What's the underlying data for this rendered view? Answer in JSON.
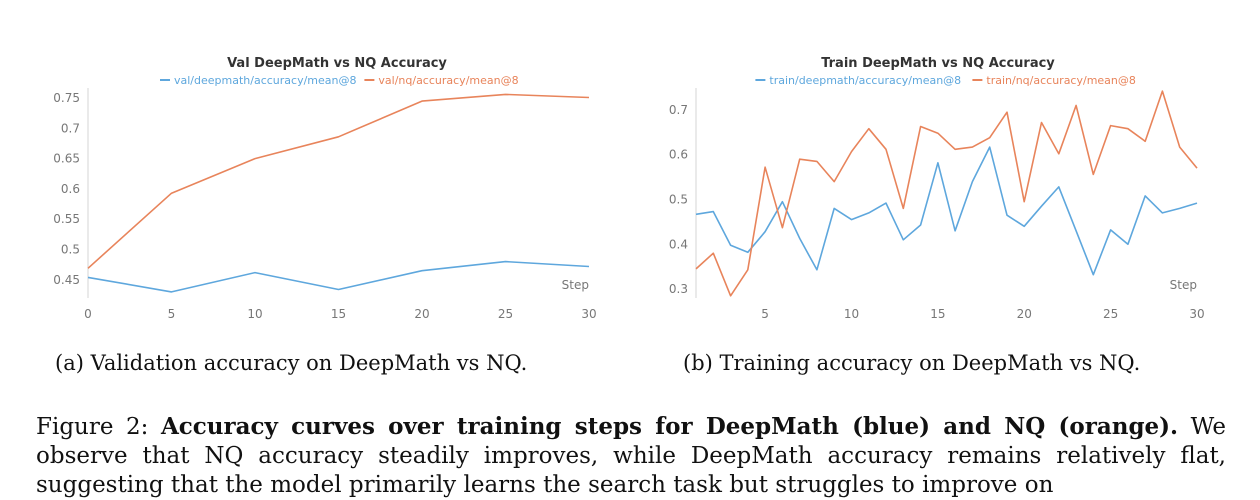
{
  "chart_data": [
    {
      "type": "line",
      "title": "Val DeepMath vs NQ Accuracy",
      "xlabel": "Step",
      "ylabel": "",
      "xlim": [
        0,
        30
      ],
      "ylim": [
        0.42,
        0.76
      ],
      "xticks": [
        0,
        5,
        10,
        15,
        20,
        25,
        30
      ],
      "yticks": [
        0.45,
        0.5,
        0.55,
        0.6,
        0.65,
        0.7,
        0.75
      ],
      "ytick_labels": [
        "0.45",
        "0.5",
        "0.55",
        "0.6",
        "0.65",
        "0.7",
        "0.75"
      ],
      "grid": false,
      "legend": "top-center",
      "series": [
        {
          "name": "val/deepmath/accuracy/mean@8",
          "color": "#5ea7dd",
          "x": [
            0,
            5,
            10,
            15,
            20,
            25,
            30
          ],
          "y": [
            0.454,
            0.43,
            0.462,
            0.434,
            0.465,
            0.48,
            0.472
          ]
        },
        {
          "name": "val/nq/accuracy/mean@8",
          "color": "#e8845b",
          "x": [
            0,
            5,
            10,
            15,
            20,
            25,
            30
          ],
          "y": [
            0.469,
            0.593,
            0.65,
            0.686,
            0.745,
            0.756,
            0.751
          ]
        }
      ]
    },
    {
      "type": "line",
      "title": "Train DeepMath vs NQ Accuracy",
      "xlabel": "Step",
      "ylabel": "",
      "xlim": [
        1,
        30
      ],
      "ylim": [
        0.28,
        0.74
      ],
      "xticks": [
        5,
        10,
        15,
        20,
        25,
        30
      ],
      "yticks": [
        0.3,
        0.4,
        0.5,
        0.6,
        0.7
      ],
      "ytick_labels": [
        "0.3",
        "0.4",
        "0.5",
        "0.6",
        "0.7"
      ],
      "grid": false,
      "legend": "top-center",
      "series": [
        {
          "name": "train/deepmath/accuracy/mean@8",
          "color": "#5ea7dd",
          "x": [
            1,
            2,
            3,
            4,
            5,
            6,
            7,
            8,
            9,
            10,
            11,
            12,
            13,
            14,
            15,
            16,
            17,
            18,
            19,
            20,
            21,
            22,
            23,
            24,
            25,
            26,
            27,
            28,
            29,
            30
          ],
          "y": [
            0.467,
            0.473,
            0.398,
            0.382,
            0.428,
            0.495,
            0.413,
            0.343,
            0.48,
            0.455,
            0.47,
            0.492,
            0.41,
            0.443,
            0.582,
            0.43,
            0.54,
            0.617,
            0.465,
            0.44,
            0.485,
            0.528,
            0.43,
            0.332,
            0.432,
            0.4,
            0.508,
            0.47,
            0.48,
            0.492
          ]
        },
        {
          "name": "train/nq/accuracy/mean@8",
          "color": "#e8845b",
          "x": [
            1,
            2,
            3,
            4,
            5,
            6,
            7,
            8,
            9,
            10,
            11,
            12,
            13,
            14,
            15,
            16,
            17,
            18,
            19,
            20,
            21,
            22,
            23,
            24,
            25,
            26,
            27,
            28,
            29,
            30
          ],
          "y": [
            0.345,
            0.38,
            0.285,
            0.343,
            0.572,
            0.437,
            0.59,
            0.585,
            0.54,
            0.607,
            0.658,
            0.612,
            0.48,
            0.663,
            0.648,
            0.612,
            0.617,
            0.638,
            0.695,
            0.495,
            0.672,
            0.602,
            0.71,
            0.556,
            0.665,
            0.658,
            0.63,
            0.742,
            0.617,
            0.57
          ]
        }
      ]
    }
  ],
  "captions": {
    "a": "(a) Validation accuracy on DeepMath vs NQ.",
    "b": "(b) Training accuracy on DeepMath vs NQ."
  },
  "figure_caption": {
    "prefix": "Figure 2: ",
    "bold": "Accuracy curves over training steps for DeepMath (blue) and NQ (orange).",
    "rest": " We observe that NQ accuracy steadily improves, while DeepMath accuracy remains relatively flat, suggesting that the model primarily learns the search task but struggles to improve on"
  }
}
